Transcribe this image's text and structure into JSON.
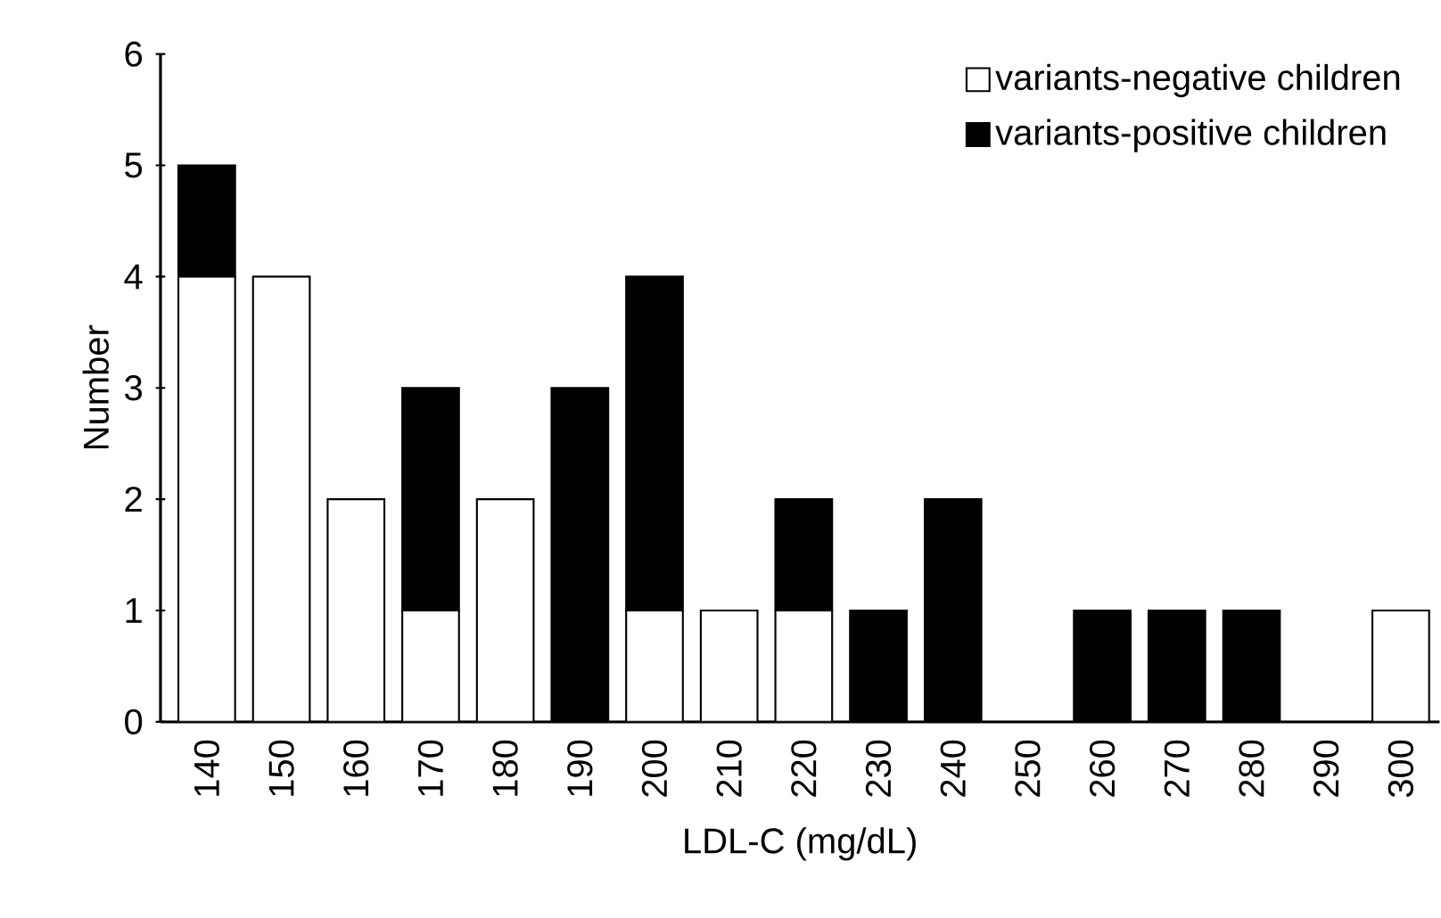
{
  "chart_data": {
    "type": "bar",
    "stacked": true,
    "xlabel": "LDL-C (mg/dL)",
    "ylabel": "Number",
    "categories": [
      "140",
      "150",
      "160",
      "170",
      "180",
      "190",
      "200",
      "210",
      "220",
      "230",
      "240",
      "250",
      "260",
      "270",
      "280",
      "290",
      "300"
    ],
    "series": [
      {
        "name": "variants-negative children",
        "color": "#ffffff",
        "values": [
          4,
          4,
          2,
          1,
          2,
          0,
          1,
          1,
          1,
          0,
          0,
          0,
          0,
          0,
          0,
          0,
          1
        ]
      },
      {
        "name": "variants-positive children",
        "color": "#000000",
        "values": [
          1,
          0,
          0,
          2,
          0,
          3,
          3,
          0,
          1,
          1,
          2,
          0,
          1,
          1,
          1,
          0,
          0
        ]
      }
    ],
    "ylim": [
      0,
      6
    ],
    "yticks": [
      0,
      1,
      2,
      3,
      4,
      5,
      6
    ],
    "grid": false,
    "legend": "top right"
  }
}
